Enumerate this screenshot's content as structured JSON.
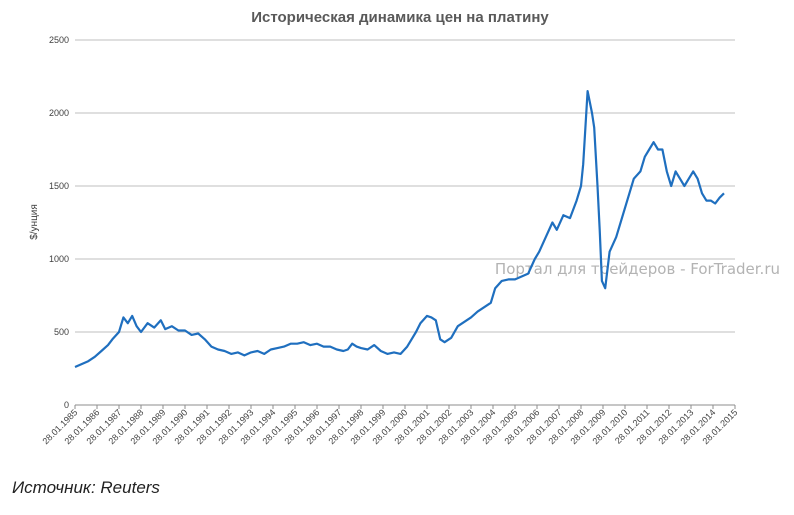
{
  "chart_data": {
    "type": "line",
    "title": "Историческая динамика цен на платину",
    "ylabel": "$/унция",
    "ylim": [
      0,
      2500
    ],
    "yticks": [
      0,
      500,
      1000,
      1500,
      2000,
      2500
    ],
    "xtick_labels": [
      "28.01.1985",
      "28.01.1986",
      "28.01.1987",
      "28.01.1988",
      "28.01.1989",
      "28.01.1990",
      "28.01.1991",
      "28.01.1992",
      "28.01.1993",
      "28.01.1994",
      "28.01.1995",
      "28.01.1996",
      "28.01.1997",
      "28.01.1998",
      "28.01.1999",
      "28.01.2000",
      "28.01.2001",
      "28.01.2002",
      "28.01.2003",
      "28.01.2004",
      "28.01.2005",
      "28.01.2006",
      "28.01.2007",
      "28.01.2008",
      "28.01.2009",
      "28.01.2010",
      "28.01.2011",
      "28.01.2012",
      "28.01.2013",
      "28.01.2014",
      "28.01.2015"
    ],
    "grid": true,
    "line_color": "#1f6fbf",
    "series": [
      {
        "x": [
          1985.0,
          1985.3,
          1985.6,
          1985.9,
          1986.2,
          1986.5,
          1986.7,
          1987.0,
          1987.2,
          1987.4,
          1987.6,
          1987.8,
          1988.0,
          1988.3,
          1988.6,
          1988.9,
          1989.1,
          1989.4,
          1989.7,
          1990.0,
          1990.3,
          1990.6,
          1990.9,
          1991.2,
          1991.5,
          1991.8,
          1992.1,
          1992.4,
          1992.7,
          1993.0,
          1993.3,
          1993.6,
          1993.9,
          1994.2,
          1994.5,
          1994.8,
          1995.1,
          1995.4,
          1995.7,
          1996.0,
          1996.3,
          1996.6,
          1996.9,
          1997.2,
          1997.4,
          1997.6,
          1997.8,
          1998.0,
          1998.3,
          1998.6,
          1998.9,
          1999.2,
          1999.5,
          1999.8,
          2000.1,
          2000.3,
          2000.5,
          2000.7,
          2001.0,
          2001.2,
          2001.4,
          2001.6,
          2001.8,
          2002.1,
          2002.4,
          2002.7,
          2003.0,
          2003.3,
          2003.6,
          2003.9,
          2004.1,
          2004.4,
          2004.7,
          2005.0,
          2005.3,
          2005.6,
          2005.9,
          2006.1,
          2006.4,
          2006.7,
          2006.9,
          2007.2,
          2007.5,
          2007.8,
          2008.0,
          2008.1,
          2008.2,
          2008.3,
          2008.5,
          2008.6,
          2008.75,
          2008.85,
          2008.95,
          2009.1,
          2009.3,
          2009.6,
          2009.9,
          2010.2,
          2010.4,
          2010.7,
          2010.9,
          2011.1,
          2011.3,
          2011.5,
          2011.7,
          2011.9,
          2012.1,
          2012.3,
          2012.5,
          2012.7,
          2012.9,
          2013.1,
          2013.3,
          2013.5,
          2013.7,
          2013.9,
          2014.1,
          2014.3,
          2014.5
        ],
        "values": [
          260,
          280,
          300,
          330,
          370,
          410,
          450,
          500,
          600,
          560,
          610,
          540,
          500,
          560,
          530,
          580,
          520,
          540,
          510,
          510,
          480,
          490,
          450,
          400,
          380,
          370,
          350,
          360,
          340,
          360,
          370,
          350,
          380,
          390,
          400,
          420,
          420,
          430,
          410,
          420,
          400,
          400,
          380,
          370,
          380,
          420,
          400,
          390,
          380,
          410,
          370,
          350,
          360,
          350,
          400,
          450,
          500,
          560,
          610,
          600,
          580,
          450,
          430,
          460,
          540,
          570,
          600,
          640,
          670,
          700,
          800,
          850,
          860,
          860,
          880,
          900,
          1000,
          1050,
          1150,
          1250,
          1200,
          1300,
          1280,
          1400,
          1500,
          1650,
          1900,
          2150,
          2000,
          1900,
          1500,
          1200,
          850,
          800,
          1050,
          1150,
          1300,
          1450,
          1550,
          1600,
          1700,
          1750,
          1800,
          1750,
          1750,
          1600,
          1500,
          1600,
          1550,
          1500,
          1550,
          1600,
          1550,
          1450,
          1400,
          1400,
          1380,
          1420,
          1450
        ]
      }
    ],
    "watermark": "Портал для трейдеров - ForTrader.ru"
  },
  "source_label": "Источник: Reuters"
}
